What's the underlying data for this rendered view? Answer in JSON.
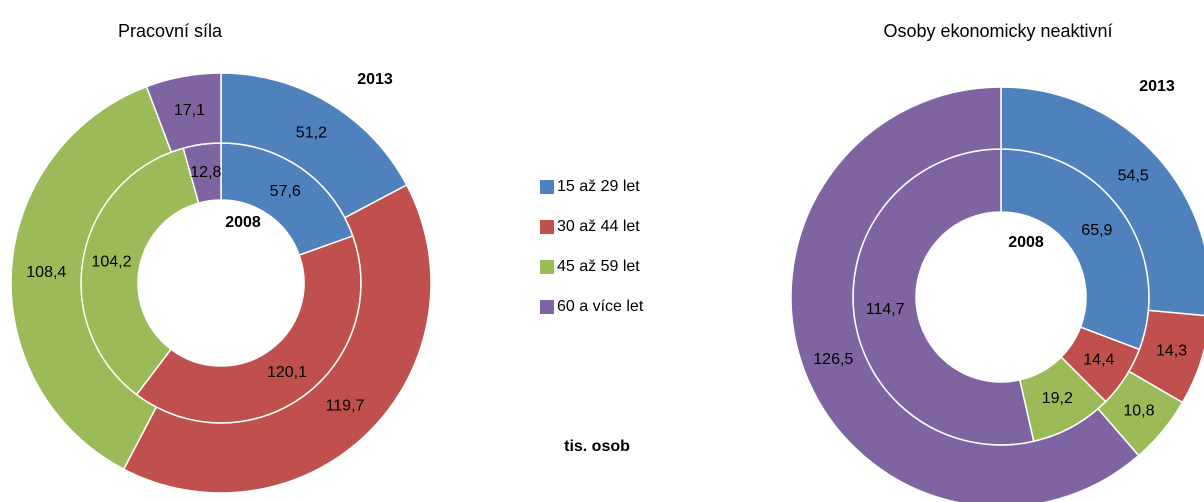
{
  "categories": [
    "15 až 29 let",
    "30 až 44 let",
    "45 až 59 let",
    "60 a více let"
  ],
  "colors": [
    "#4f81bd",
    "#c0504d",
    "#9bbb59",
    "#8064a2"
  ],
  "unit": "tis. osob",
  "chart_data": [
    {
      "type": "donut",
      "title": "Pracovní síla",
      "series": [
        {
          "name": "2008",
          "values": [
            57.6,
            120.1,
            104.2,
            12.8
          ],
          "value_labels": [
            "57,6",
            "120,1",
            "104,2",
            "12,8"
          ]
        },
        {
          "name": "2013",
          "values": [
            51.2,
            119.7,
            108.4,
            17.1
          ],
          "value_labels": [
            "51,2",
            "119,7",
            "108,4",
            "17,1"
          ]
        }
      ]
    },
    {
      "type": "donut",
      "title": "Osoby ekonomicky neaktivní",
      "series": [
        {
          "name": "2008",
          "values": [
            65.9,
            14.4,
            19.2,
            114.7
          ],
          "value_labels": [
            "65,9",
            "14,4",
            "19,2",
            "114,7"
          ]
        },
        {
          "name": "2013",
          "values": [
            54.5,
            14.3,
            10.8,
            126.5
          ],
          "value_labels": [
            "54,5",
            "14,3",
            "10,8",
            "126,5"
          ]
        }
      ]
    }
  ]
}
